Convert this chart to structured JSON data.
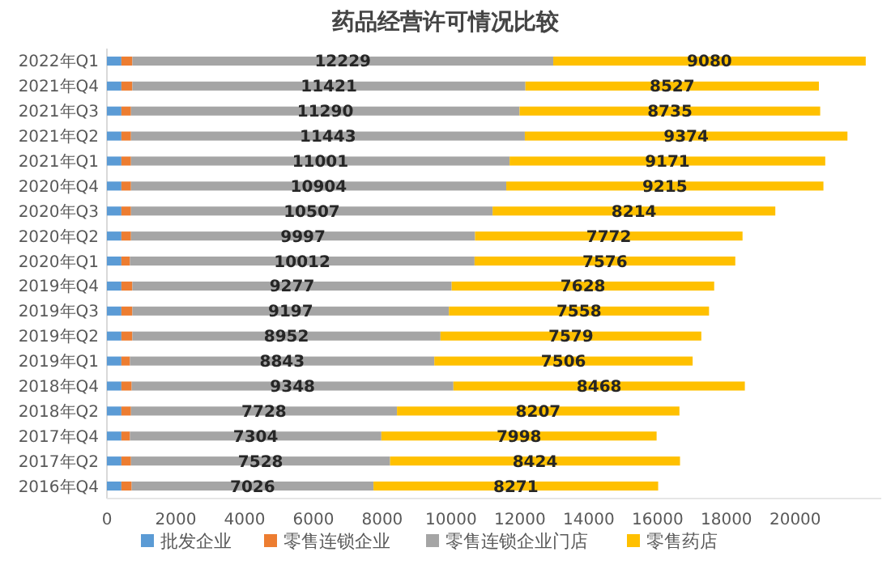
{
  "chart_data": {
    "type": "bar",
    "orientation": "horizontal",
    "stacked": true,
    "title": "药品经营许可情况比较",
    "categories": [
      "2022年Q1",
      "2021年Q4",
      "2021年Q3",
      "2021年Q2",
      "2021年Q1",
      "2020年Q4",
      "2020年Q3",
      "2020年Q2",
      "2020年Q1",
      "2019年Q4",
      "2019年Q3",
      "2019年Q2",
      "2019年Q1",
      "2018年Q4",
      "2018年Q2",
      "2017年Q4",
      "2017年Q2",
      "2016年Q4"
    ],
    "series": [
      {
        "name": "批发企业",
        "color": "#5b9bd5",
        "values": [
          420,
          420,
          420,
          420,
          420,
          420,
          420,
          420,
          420,
          420,
          420,
          420,
          420,
          420,
          420,
          420,
          420,
          420
        ]
      },
      {
        "name": "零售连锁企业",
        "color": "#ed7d31",
        "values": [
          320,
          320,
          280,
          280,
          280,
          280,
          280,
          280,
          250,
          320,
          320,
          320,
          250,
          300,
          280,
          250,
          280,
          300
        ]
      },
      {
        "name": "零售连锁企业门店",
        "color": "#a5a5a5",
        "values": [
          12229,
          11421,
          11290,
          11443,
          11001,
          10904,
          10507,
          9997,
          10012,
          9277,
          9197,
          8952,
          8843,
          9348,
          7728,
          7304,
          7528,
          7026
        ],
        "value_labels": [
          "12229",
          "11421",
          "11290",
          "11443",
          "11001",
          "10904",
          "10507",
          "9997",
          "10012",
          "9277",
          "9197",
          "8952",
          "8843",
          "9348",
          "7728",
          "7304",
          "7528",
          "7026"
        ]
      },
      {
        "name": "零售药店",
        "color": "#ffc000",
        "values": [
          9080,
          8527,
          8735,
          9374,
          9171,
          9215,
          8214,
          7772,
          7576,
          7628,
          7558,
          7579,
          7506,
          8468,
          8207,
          7998,
          8424,
          8271
        ],
        "value_labels": [
          "9080",
          "8527",
          "8735",
          "9374",
          "9171",
          "9215",
          "8214",
          "7772",
          "7576",
          "7628",
          "7558",
          "7579",
          "7506",
          "8468",
          "8207",
          "7998",
          "8424",
          "8271"
        ]
      }
    ],
    "xlim": [
      0,
      22500
    ],
    "xticks": [
      0,
      2000,
      4000,
      6000,
      8000,
      10000,
      12000,
      14000,
      16000,
      18000,
      20000
    ],
    "legend": "bottom"
  }
}
